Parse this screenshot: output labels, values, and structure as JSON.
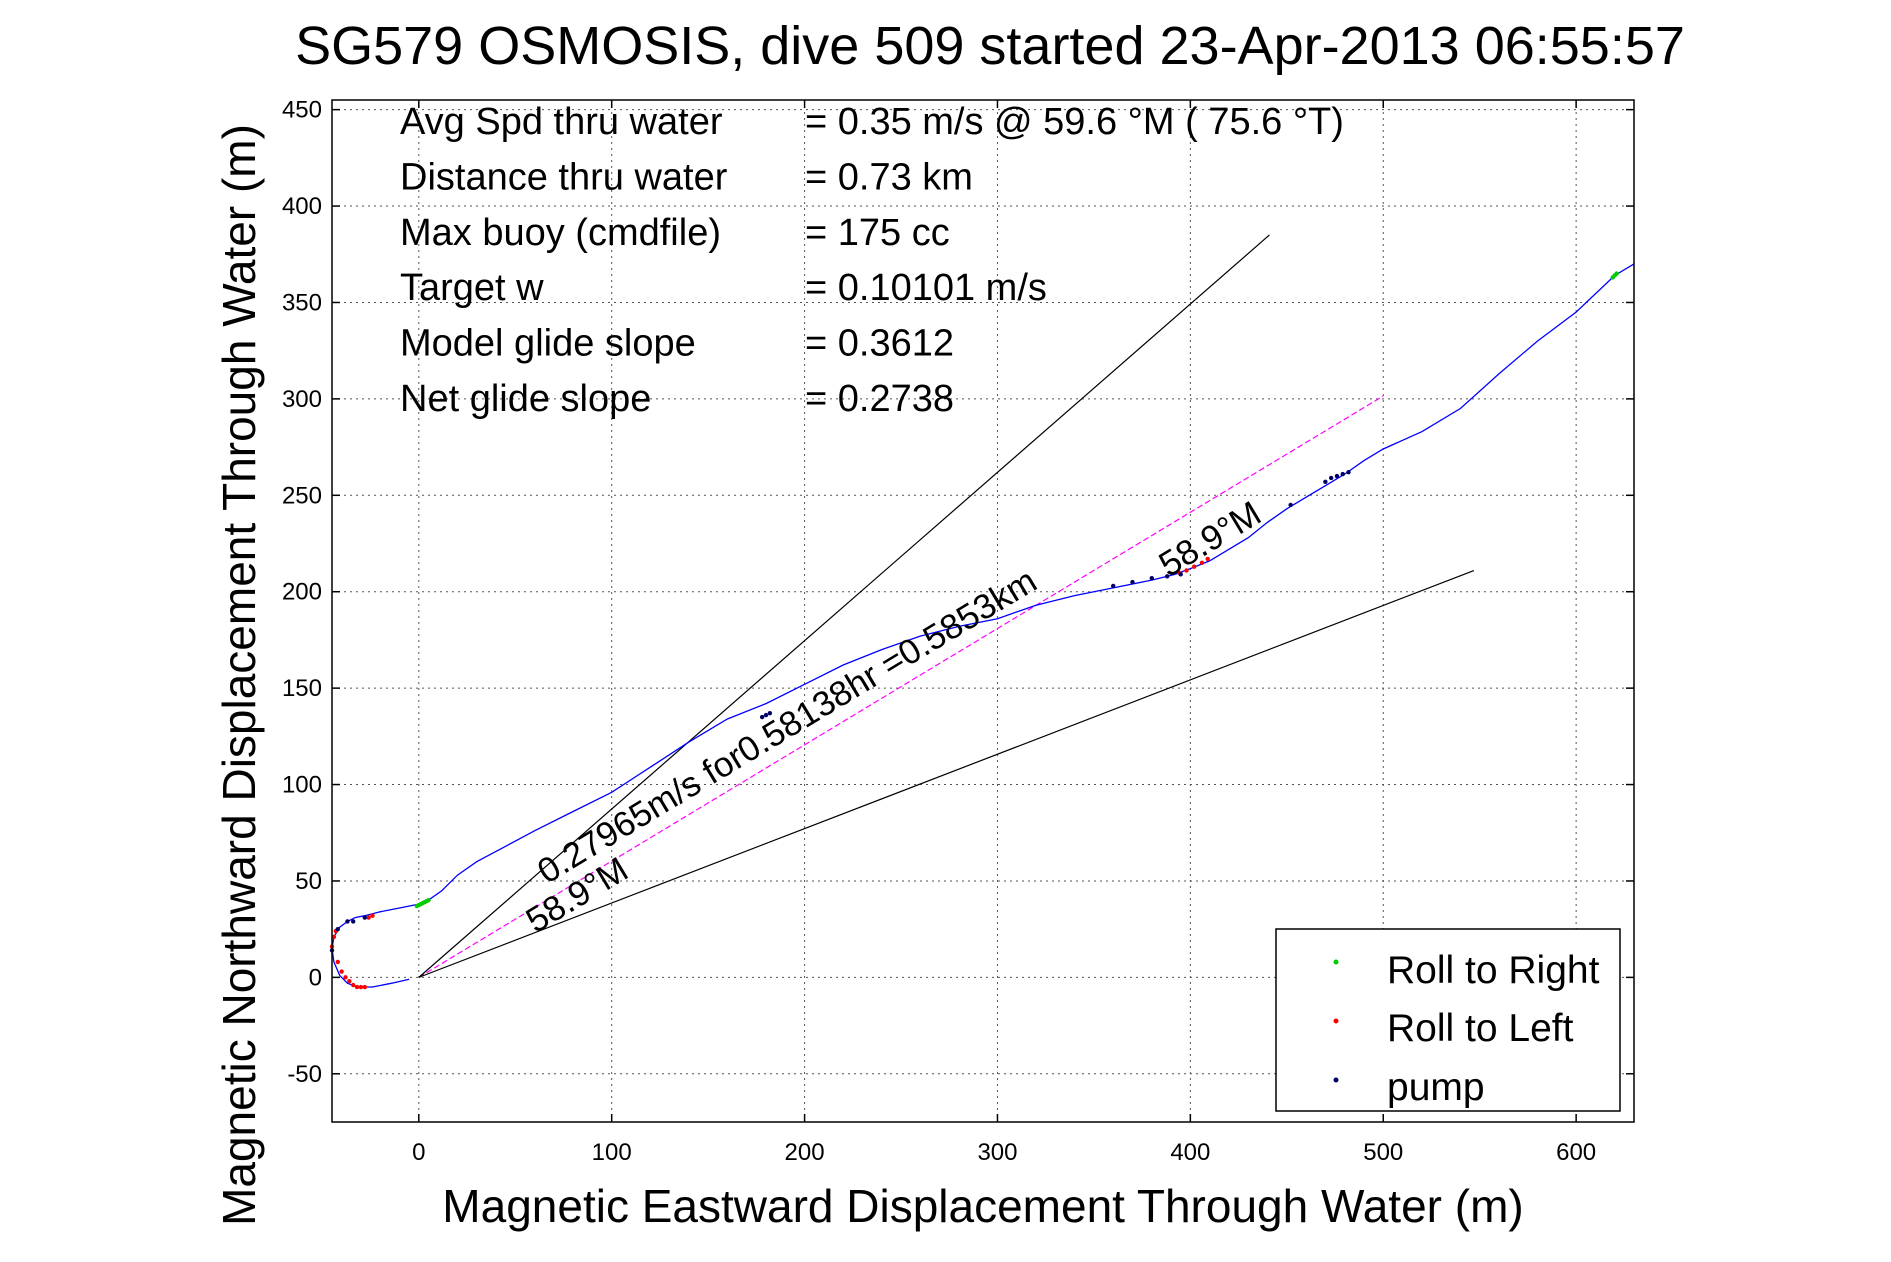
{
  "chart_data": {
    "type": "line",
    "title": "SG579 OSMOSIS, dive 509 started 23-Apr-2013 06:55:57",
    "xlabel": "Magnetic Eastward Displacement Through Water (m)",
    "ylabel": "Magnetic Northward Displacement Through Water (m)",
    "xlim": [
      -45,
      630
    ],
    "ylim": [
      -75,
      455
    ],
    "xticks": [
      0,
      100,
      200,
      300,
      400,
      500,
      600
    ],
    "yticks": [
      -50,
      0,
      50,
      100,
      150,
      200,
      250,
      300,
      350,
      400,
      450
    ],
    "grid": true,
    "legend_placement": "bottom-right",
    "info_lines": [
      {
        "label": "Avg Spd thru water",
        "value": "=  0.35 m/s @  59.6 °M ( 75.6 °T)"
      },
      {
        "label": "Distance thru water",
        "value": "=  0.73 km"
      },
      {
        "label": "Max buoy (cmdfile)",
        "value": "= 175 cc"
      },
      {
        "label": "Target w",
        "value": "= 0.10101 m/s"
      },
      {
        "label": "Model glide slope",
        "value": "= 0.3612"
      },
      {
        "label": "Net glide slope",
        "value": "= 0.2738"
      }
    ],
    "annotations": {
      "track_label": "0.27965m/s for0.58138hr =0.5853km",
      "heading_label_start": "58.9°M",
      "heading_label_end": "58.9°M"
    },
    "series": [
      {
        "name": "track",
        "role": "track",
        "color": "#0000ff",
        "x": [
          -5,
          -14,
          -24,
          -32,
          -37,
          -41,
          -44,
          -45,
          -44,
          -41,
          -37,
          -33,
          -28,
          -20,
          -10,
          0,
          5,
          12,
          20,
          30,
          45,
          60,
          80,
          100,
          120,
          140,
          160,
          180,
          200,
          220,
          240,
          260,
          280,
          300,
          320,
          340,
          360,
          380,
          392,
          400,
          410,
          420,
          430,
          440,
          450,
          460,
          470,
          480,
          490,
          500,
          520,
          540,
          560,
          580,
          600,
          620,
          630
        ],
        "y": [
          -1,
          -3,
          -5,
          -5,
          -3,
          1,
          8,
          15,
          21,
          26,
          29,
          31,
          32,
          34,
          36,
          38,
          40,
          45,
          53,
          60,
          68,
          76,
          86,
          96,
          109,
          122,
          134,
          142,
          152,
          162,
          170,
          177,
          182,
          186,
          193,
          198,
          202,
          206,
          209,
          212,
          216,
          222,
          228,
          236,
          243,
          249,
          255,
          261,
          268,
          274,
          283,
          295,
          313,
          330,
          345,
          364,
          370
        ]
      },
      {
        "name": "Roll to Right",
        "role": "marker",
        "color": "#00cc00",
        "x": [
          -1,
          0,
          1,
          2,
          3,
          4,
          5,
          619,
          620,
          621
        ],
        "y": [
          37,
          37.5,
          38,
          38.5,
          39,
          39.5,
          40,
          363,
          364,
          365
        ]
      },
      {
        "name": "Roll to Left",
        "role": "marker",
        "color": "#ff0000",
        "x": [
          -45,
          -44,
          -43,
          -42,
          -40,
          -38,
          -36,
          -34,
          -32,
          -30,
          -28,
          -26,
          -24,
          394,
          398,
          402,
          406,
          409
        ],
        "y": [
          16,
          21,
          24,
          8,
          3,
          0,
          -2,
          -4,
          -5,
          -5,
          -5,
          31,
          32,
          210,
          211,
          213,
          215,
          217
        ]
      },
      {
        "name": "pump",
        "role": "marker",
        "color": "#000066",
        "x": [
          -45,
          -42,
          -37,
          -34,
          -28,
          178,
          180,
          182,
          360,
          370,
          380,
          388,
          395,
          452,
          470,
          473,
          476,
          479,
          482
        ],
        "y": [
          14,
          25,
          29,
          29,
          31,
          135,
          136,
          137,
          203,
          205,
          207,
          208,
          209,
          245,
          257,
          259,
          260,
          261,
          262
        ]
      },
      {
        "name": "heading",
        "role": "reference",
        "color": "#ff00ff",
        "dashed": true,
        "x": [
          0,
          500
        ],
        "y": [
          0,
          301.5
        ]
      },
      {
        "name": "upper bound",
        "role": "reference",
        "color": "#000000",
        "x": [
          0,
          441
        ],
        "y": [
          0,
          385
        ]
      },
      {
        "name": "lower bound",
        "role": "reference",
        "color": "#000000",
        "x": [
          0,
          547
        ],
        "y": [
          0,
          211
        ]
      }
    ]
  }
}
